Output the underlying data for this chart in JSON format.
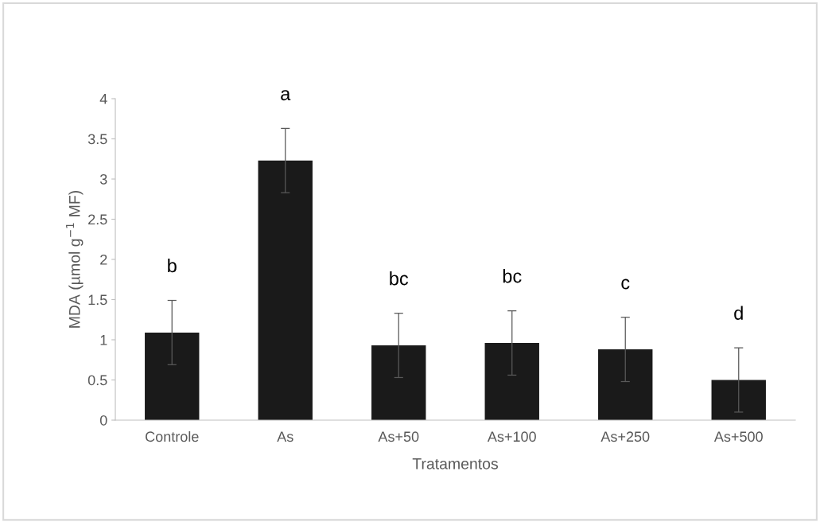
{
  "chart_data": {
    "type": "bar",
    "xlabel": "Tratamentos",
    "ylabel": "MDA (µmol g$^{−1}$ MF)",
    "categories": [
      "Controle",
      "As",
      "As+50",
      "As+100",
      "As+250",
      "As+500"
    ],
    "values": [
      1.09,
      3.23,
      0.93,
      0.96,
      0.88,
      0.5
    ],
    "errors": [
      0.4,
      0.4,
      0.4,
      0.4,
      0.4,
      0.4
    ],
    "color": "#1a1a1a",
    "ylim": [
      0,
      4
    ],
    "yticks": [
      0,
      0.5,
      1,
      1.5,
      2,
      2.5,
      3,
      3.5,
      4
    ],
    "grid": false,
    "legend": false,
    "annotations": [
      "b",
      "a",
      "bc",
      "bc",
      "c",
      "d"
    ]
  }
}
